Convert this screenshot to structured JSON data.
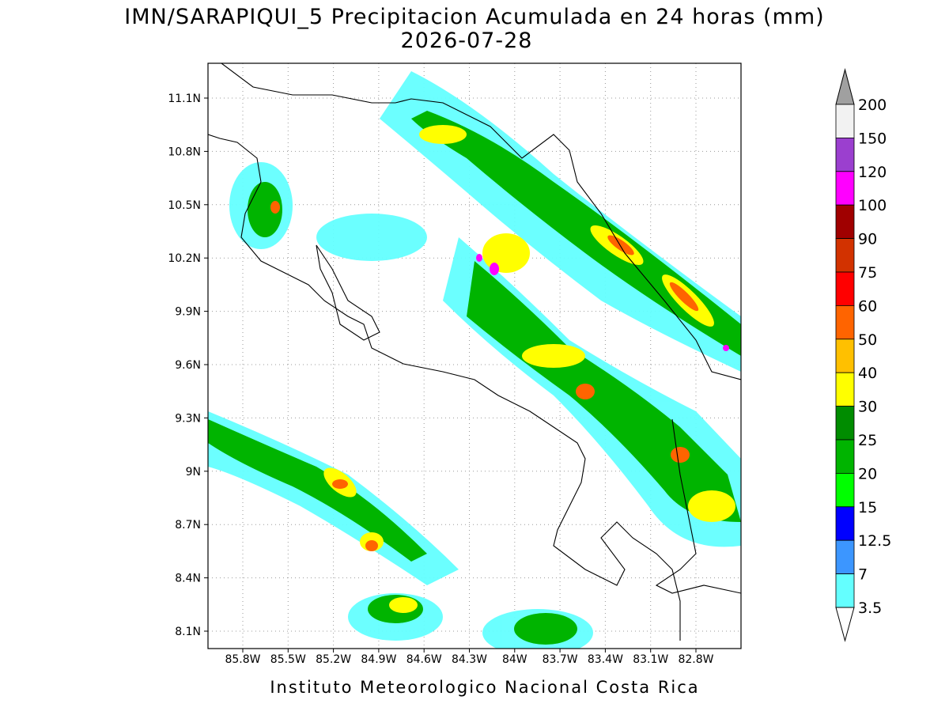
{
  "header": {
    "title": "IMN/SARAPIQUI_5 Precipitacion Acumulada en 24 horas (mm)",
    "date": "2026-07-28"
  },
  "map": {
    "x_labels": [
      "85.8W",
      "85.5W",
      "85.2W",
      "84.9W",
      "84.6W",
      "84.3W",
      "84W",
      "83.7W",
      "83.4W",
      "83.1W",
      "82.8W"
    ],
    "y_labels": [
      "11.1N",
      "10.8N",
      "10.5N",
      "10.2N",
      "9.9N",
      "9.6N",
      "9.3N",
      "9N",
      "8.7N",
      "8.4N",
      "8.1N"
    ]
  },
  "legend": {
    "labels": [
      "200",
      "150",
      "120",
      "100",
      "90",
      "75",
      "60",
      "50",
      "40",
      "30",
      "25",
      "20",
      "15",
      "12.5",
      "7",
      "3.5"
    ],
    "colors": [
      "#f2f2f2",
      "#9b3fcf",
      "#ff00ff",
      "#a00000",
      "#d23200",
      "#ff0000",
      "#ff6400",
      "#ffc000",
      "#ffff00",
      "#008c00",
      "#00b400",
      "#00ff00",
      "#0000ff",
      "#3c96ff",
      "#64ffff"
    ],
    "over_color": "#a0a0a0",
    "under_color": "#ffffff"
  },
  "footer": "Instituto Meteorologico Nacional Costa Rica"
}
